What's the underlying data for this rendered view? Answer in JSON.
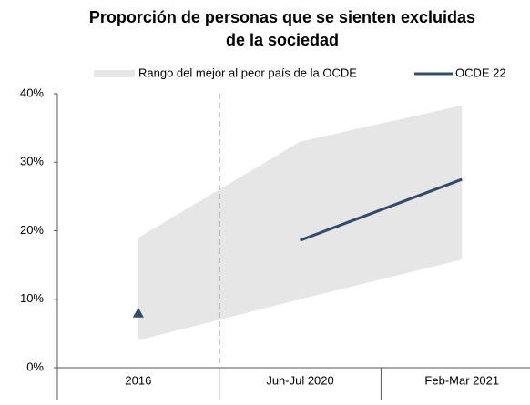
{
  "chart_data": {
    "type": "line",
    "title": [
      "Proporción de personas que se sienten excluidas",
      "de la sociedad"
    ],
    "categories": [
      "2016",
      "Jun-Jul 2020",
      "Feb-Mar 2021"
    ],
    "range": {
      "name": "Rango del mejor al peor país de la OCDE",
      "color": "#e6e6e6",
      "low": [
        4,
        10,
        15.8
      ],
      "high": [
        19,
        33,
        38.3
      ]
    },
    "series": [
      {
        "name": "OCDE 22",
        "color": "#334b6b",
        "values": [
          null,
          18.6,
          27.5
        ],
        "marker_values": [
          8,
          null,
          null
        ]
      }
    ],
    "ylim": [
      0,
      40
    ],
    "yticks": [
      {
        "value": 0,
        "label": "0%"
      },
      {
        "value": 10,
        "label": "10%"
      },
      {
        "value": 20,
        "label": "20%"
      },
      {
        "value": 30,
        "label": "30%"
      },
      {
        "value": 40,
        "label": "40%"
      }
    ],
    "grid": false,
    "legend": "top"
  }
}
